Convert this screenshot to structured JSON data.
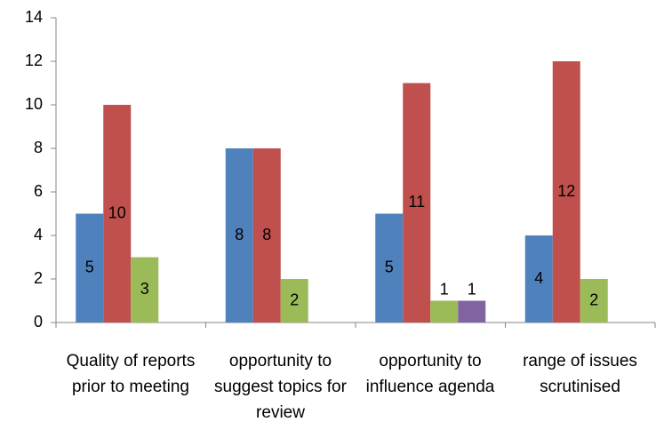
{
  "chart_data": {
    "type": "bar",
    "categories": [
      "Quality of reports prior to meeting",
      "opportunity to suggest topics for review",
      "opportunity to influence agenda",
      "range of issues scrutinised"
    ],
    "series": [
      {
        "color": "#4f81bd",
        "values": [
          5,
          8,
          5,
          4
        ]
      },
      {
        "color": "#c0504d",
        "values": [
          10,
          8,
          11,
          12
        ]
      },
      {
        "color": "#9bbb59",
        "values": [
          3,
          2,
          1,
          2
        ]
      },
      {
        "color": "#8064a2",
        "values": [
          null,
          null,
          1,
          null
        ]
      }
    ],
    "ylim": [
      0,
      14
    ],
    "yticks": [
      0,
      2,
      4,
      6,
      8,
      10,
      12,
      14
    ],
    "grid": false,
    "data_labels": true
  }
}
